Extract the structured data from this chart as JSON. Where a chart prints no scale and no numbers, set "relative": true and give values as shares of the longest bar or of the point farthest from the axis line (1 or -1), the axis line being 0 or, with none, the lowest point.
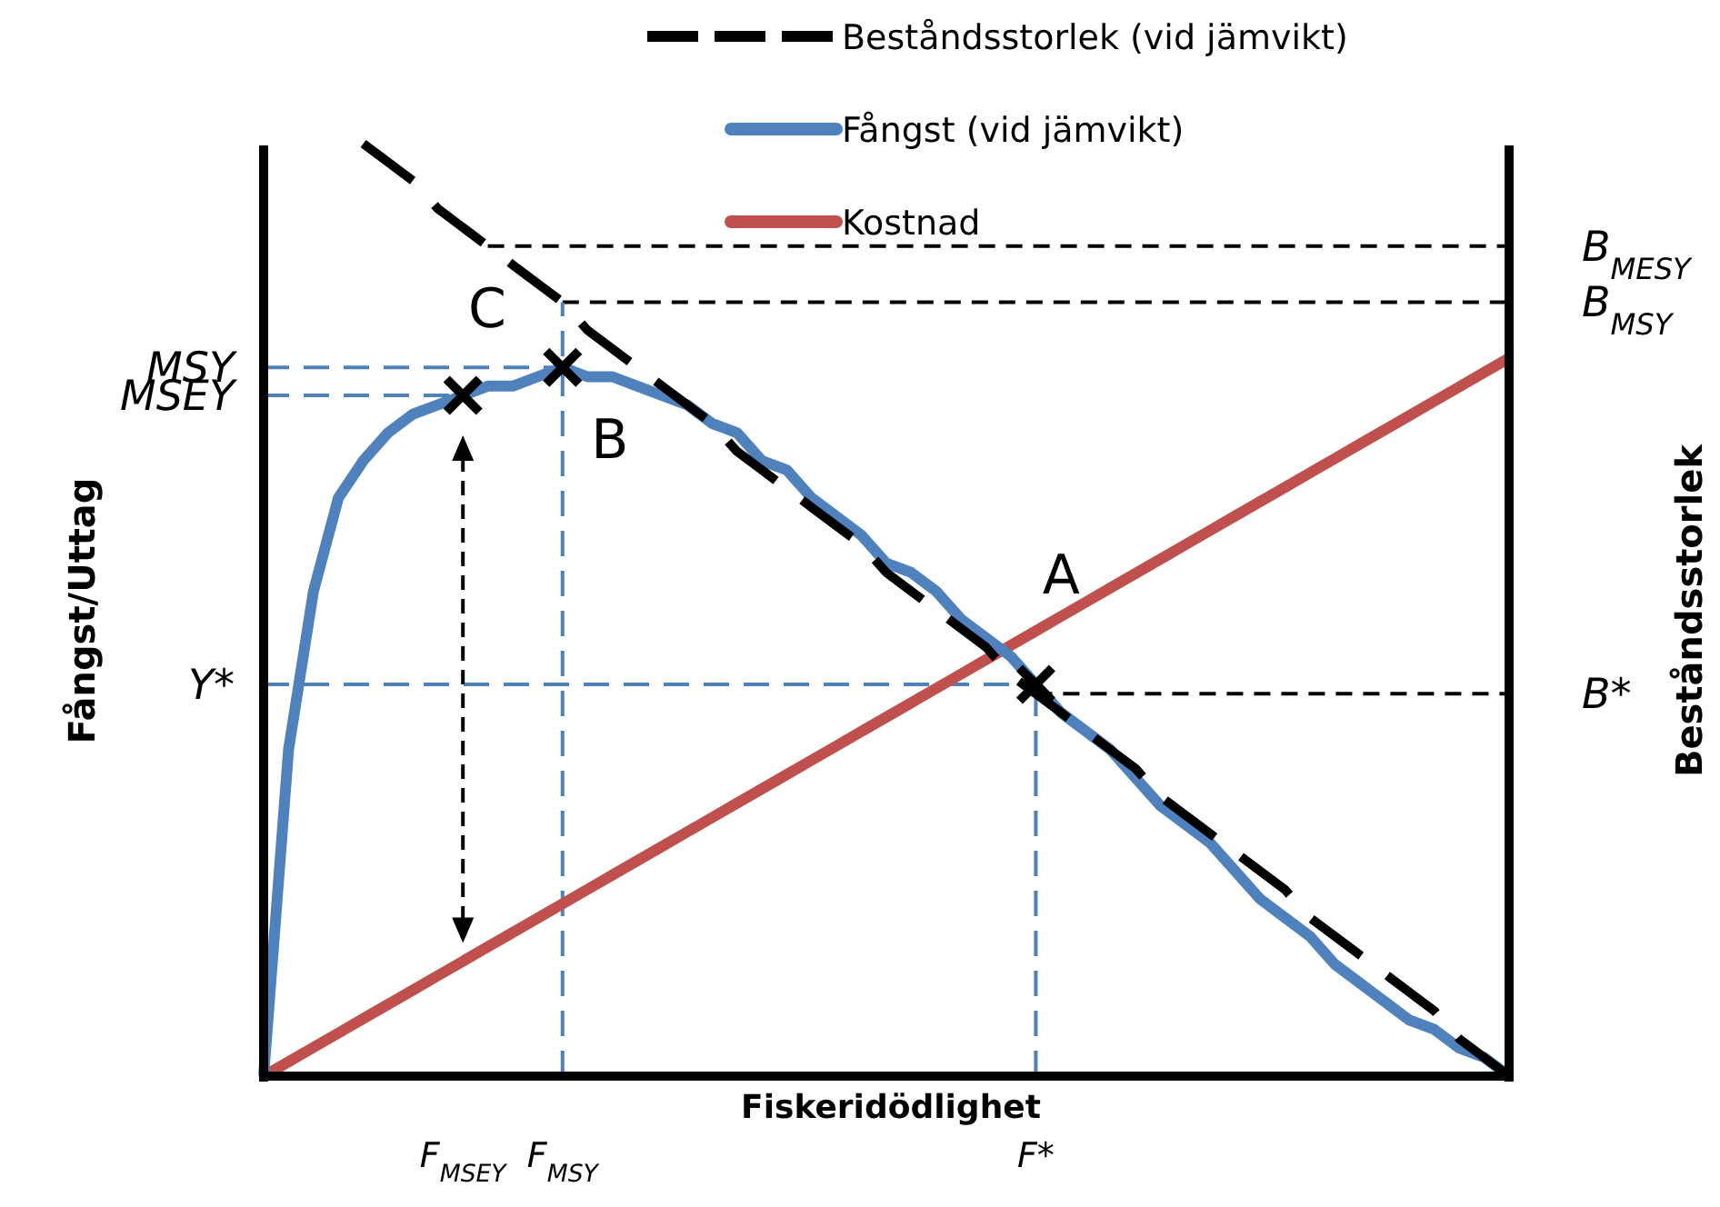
{
  "chart_data": {
    "type": "line",
    "relative": true,
    "xlabel": "Fiskeridödlighet",
    "ylabel": "Fångst/Uttag",
    "y2label": "Beståndsstorlek",
    "categories": [
      null,
      null,
      null,
      null,
      null,
      null,
      null,
      null,
      "F$_{MSEY}$",
      null,
      null,
      null,
      "F$_{MSY}$",
      null,
      null,
      null,
      null,
      null,
      null,
      null,
      null,
      null,
      null,
      null,
      null,
      null,
      null,
      null,
      null,
      null,
      null,
      "F*",
      null,
      null,
      null,
      null,
      null,
      null,
      null,
      null,
      null,
      null,
      null,
      null,
      null,
      null,
      null,
      null,
      null,
      null,
      null
    ],
    "series": [
      {
        "name": "Beståndsstorlek (vid jämvikt)",
        "color": "#000000",
        "line_style": "dashed",
        "values": [
          null,
          null,
          null,
          null,
          1,
          0.98,
          0.96,
          0.93,
          0.91,
          0.89,
          0.87,
          0.85,
          0.83,
          0.8,
          0.78,
          0.76,
          0.74,
          0.72,
          0.7,
          0.67,
          0.65,
          0.63,
          0.61,
          0.59,
          0.57,
          0.54,
          0.52,
          0.5,
          0.48,
          0.46,
          0.43,
          0.41,
          0.39,
          0.37,
          0.35,
          0.33,
          0.3,
          0.28,
          0.26,
          0.24,
          0.22,
          0.2,
          0.17,
          0.15,
          0.13,
          0.11,
          0.09,
          0.07,
          0.04,
          0.02,
          0
        ]
      },
      {
        "name": "Fångst (vid jämvikt)",
        "color": "#4f81bd",
        "values": [
          0,
          0.35,
          0.52,
          0.62,
          0.66,
          0.69,
          0.71,
          0.72,
          0.73,
          0.74,
          0.74,
          0.75,
          0.76,
          0.75,
          0.75,
          0.74,
          0.73,
          0.72,
          0.7,
          0.69,
          0.66,
          0.65,
          0.62,
          0.6,
          0.58,
          0.55,
          0.54,
          0.52,
          0.49,
          0.47,
          0.45,
          0.42,
          0.39,
          0.37,
          0.35,
          0.32,
          0.29,
          0.27,
          0.25,
          0.22,
          0.19,
          0.17,
          0.15,
          0.12,
          0.1,
          0.08,
          0.06,
          0.05,
          0.03,
          0.02,
          0
        ]
      },
      {
        "name": "Kostnad",
        "color": "#c0504d",
        "values": [
          0,
          0.0154,
          0.0308,
          0.0462,
          0.0616,
          0.077,
          0.0924,
          0.1078,
          0.1232,
          0.1386,
          0.154,
          0.1694,
          0.1848,
          0.2002,
          0.2156,
          0.231,
          0.2464,
          0.2618,
          0.2772,
          0.2926,
          0.308,
          0.3234,
          0.3388,
          0.3542,
          0.3696,
          0.385,
          0.4004,
          0.4158,
          0.4312,
          0.4466,
          0.462,
          0.4774,
          0.4928,
          0.5082,
          0.5236,
          0.539,
          0.5544,
          0.5698,
          0.5852,
          0.6006,
          0.616,
          0.6314,
          0.6468,
          0.6622,
          0.6776,
          0.693,
          0.7084,
          0.7238,
          0.7392,
          0.7546,
          0.77
        ]
      },
      {
        "type": "scatter",
        "color": "#000000",
        "marker": "cross",
        "values": [
          null,
          null,
          null,
          null,
          null,
          null,
          null,
          null,
          0.73,
          null,
          null,
          null,
          0.76,
          null,
          null,
          null,
          null,
          null,
          null,
          null,
          null,
          null,
          null,
          null,
          null,
          null,
          null,
          null,
          null,
          null,
          null,
          0.42,
          null,
          null,
          null,
          null,
          null,
          null,
          null,
          null,
          null,
          null,
          null,
          null,
          null,
          null,
          null,
          null,
          null,
          null,
          null
        ]
      }
    ],
    "ref_lines": [
      {
        "axis": "y",
        "value": 0.76,
        "label": "MSY",
        "color": "#4f81bd",
        "line_style": "dashed"
      },
      {
        "axis": "y",
        "value": 0.73,
        "label": "MSEY",
        "color": "#4f81bd",
        "line_style": "dashed"
      },
      {
        "axis": "y",
        "value": 0.42,
        "label": "Y*",
        "color": "#4f81bd",
        "line_style": "dashed"
      },
      {
        "axis": "y",
        "value": 0.89,
        "label": "B$_{MESY}$",
        "color": "#000000",
        "line_style": "dashed"
      },
      {
        "axis": "y",
        "value": 0.83,
        "label": "B$_{MSY}$",
        "color": "#000000",
        "line_style": "dashed"
      },
      {
        "axis": "y",
        "value": 0.41,
        "label": "B*",
        "color": "#000000",
        "line_style": "dashed"
      }
    ],
    "annotations": [
      {
        "text": "A",
        "x": "F*",
        "y": 0.42
      },
      {
        "text": "B",
        "x": "F$_{MSY}$",
        "y": 0.76
      },
      "C"
    ],
    "legend": "top"
  }
}
